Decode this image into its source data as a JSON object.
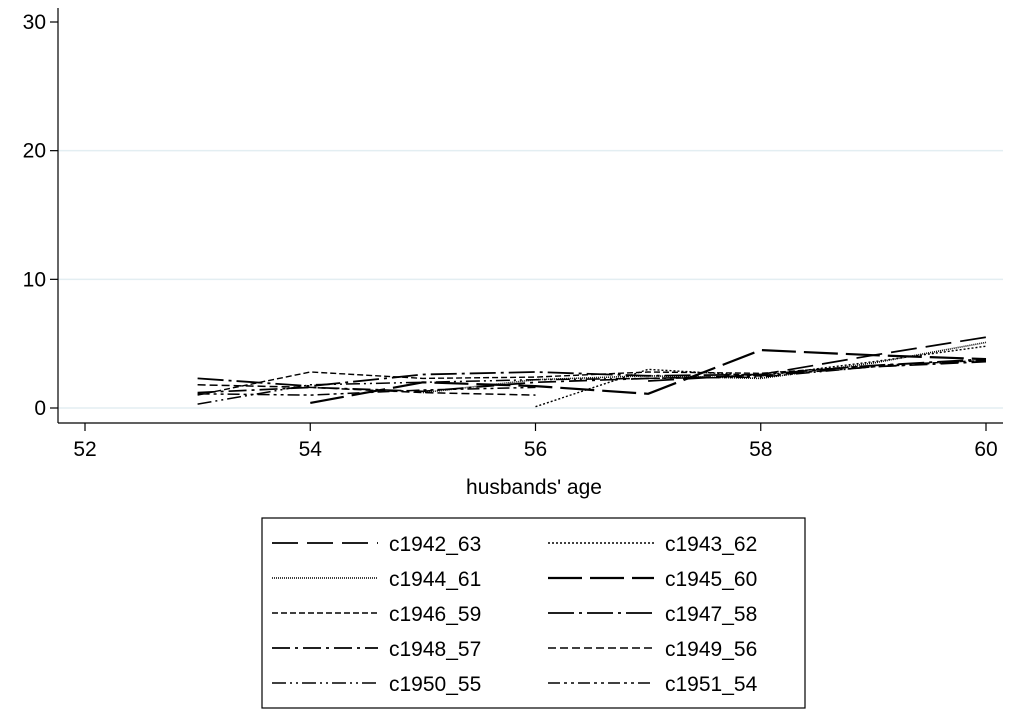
{
  "chart_data": {
    "type": "line",
    "title": "",
    "xlabel": "husbands' age",
    "ylabel": "",
    "xlim": [
      52,
      60
    ],
    "ylim": [
      0,
      30
    ],
    "xticks": [
      52,
      54,
      56,
      58,
      60
    ],
    "yticks": [
      0,
      10,
      20,
      30
    ],
    "xtick_labels": [
      "52",
      "54",
      "56",
      "58",
      "60"
    ],
    "ytick_labels": [
      "0",
      "10",
      "20",
      "30"
    ],
    "grid": "horizontal",
    "legend_position": "bottom",
    "series": [
      {
        "name": "c1942_63",
        "dash": "26 9",
        "width": 1.7,
        "x": [
          57,
          58,
          59,
          60
        ],
        "y": [
          2.1,
          2.6,
          4.1,
          5.5
        ]
      },
      {
        "name": "c1943_62",
        "dash": "2 2",
        "width": 1.4,
        "x": [
          56,
          57,
          58,
          59,
          60
        ],
        "y": [
          0.1,
          3.0,
          2.5,
          3.6,
          4.8
        ]
      },
      {
        "name": "c1944_61",
        "dash": "1 1",
        "width": 1.6,
        "x": [
          55,
          56,
          57,
          58,
          59,
          60
        ],
        "y": [
          1.2,
          2.2,
          2.5,
          2.3,
          3.5,
          5.1
        ]
      },
      {
        "name": "c1945_60",
        "dash": "34 8",
        "width": 2.2,
        "x": [
          54,
          55,
          56,
          57,
          58,
          59,
          60
        ],
        "y": [
          0.4,
          2.0,
          1.7,
          1.1,
          4.5,
          4.1,
          3.8
        ]
      },
      {
        "name": "c1946_59",
        "dash": "6 3",
        "width": 1.4,
        "x": [
          53,
          54,
          55,
          56,
          57,
          58,
          59,
          60
        ],
        "y": [
          1.0,
          2.8,
          2.3,
          2.4,
          2.8,
          2.7,
          3.3,
          3.7
        ]
      },
      {
        "name": "c1947_58",
        "dash": "26 5 3 5",
        "width": 1.8,
        "x": [
          53,
          54,
          55,
          56,
          57,
          58,
          59,
          60
        ],
        "y": [
          2.3,
          1.7,
          2.6,
          2.8,
          2.5,
          2.6,
          3.3,
          3.8
        ]
      },
      {
        "name": "c1948_57",
        "dash": "18 5 3 5",
        "width": 1.7,
        "x": [
          53,
          54,
          55,
          56,
          57,
          58,
          59,
          60
        ],
        "y": [
          1.2,
          1.6,
          1.3,
          2.0,
          2.3,
          2.5,
          3.2,
          3.6
        ]
      },
      {
        "name": "c1949_56",
        "dash": "8 4",
        "width": 1.5,
        "x": [
          53,
          54,
          55,
          56
        ],
        "y": [
          1.8,
          1.6,
          1.2,
          1.0
        ]
      },
      {
        "name": "c1950_55",
        "dash": "14 4 2 4 2 4",
        "width": 1.5,
        "x": [
          53,
          54,
          55,
          56,
          57,
          58,
          59,
          60
        ],
        "y": [
          0.3,
          1.8,
          2.0,
          2.2,
          2.3,
          2.4,
          3.2,
          3.7
        ]
      },
      {
        "name": "c1951_54",
        "dash": "12 4 3 4 3 4",
        "width": 1.5,
        "x": [
          53,
          54,
          55,
          56
        ],
        "y": [
          1.1,
          1.0,
          1.4,
          1.6
        ]
      }
    ]
  }
}
